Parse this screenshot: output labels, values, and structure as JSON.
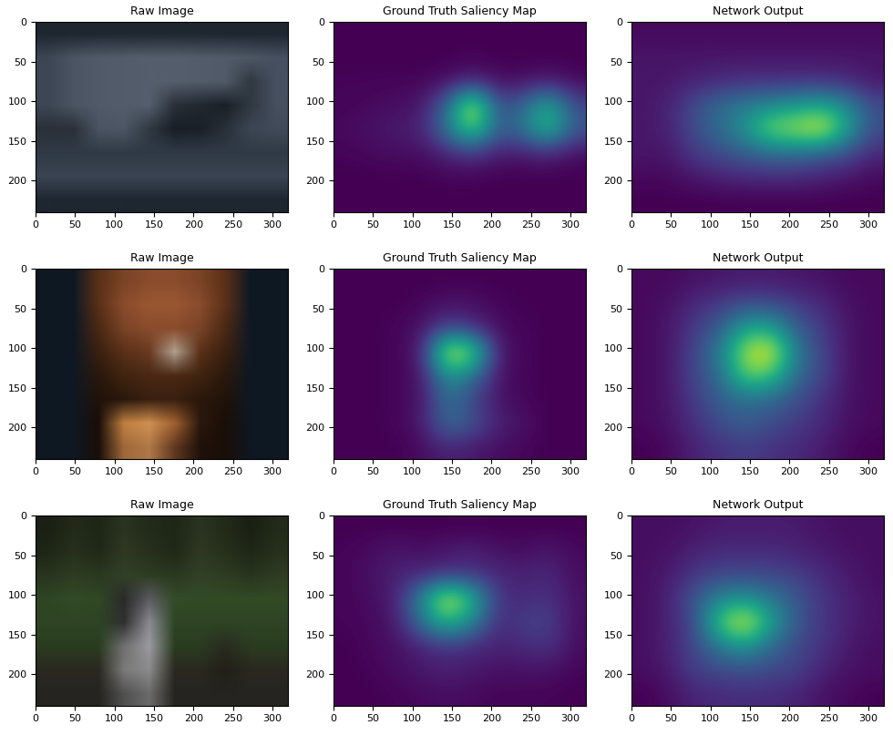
{
  "chart_data": [
    {
      "type": "image",
      "title": "Raw Image",
      "xlim": [
        0,
        320
      ],
      "ylim": [
        240,
        0
      ],
      "xticks": [
        0,
        50,
        100,
        150,
        200,
        250,
        300
      ],
      "yticks": [
        0,
        50,
        100,
        150,
        200
      ],
      "pixels": [
        [
          "#1e2630",
          "#1e2630",
          "#1e2630",
          "#1e2630",
          "#1e2630",
          "#1e2630",
          "#1e2630",
          "#1e2630",
          "#1e2630",
          "#1e2630"
        ],
        [
          "#3c4654",
          "#4a5462",
          "#505a68",
          "#525c6a",
          "#545e6c",
          "#545e6c",
          "#525c6a",
          "#505a68",
          "#4c5664",
          "#465060"
        ],
        [
          "#3c4654",
          "#4a5462",
          "#505a68",
          "#525c6a",
          "#545e6c",
          "#545e6c",
          "#525c6a",
          "#505a68",
          "#303840",
          "#465060"
        ],
        [
          "#3c4654",
          "#4a5462",
          "#505a68",
          "#525c6a",
          "#545e6c",
          "#2a3038",
          "#202830",
          "#1a2028",
          "#303840",
          "#465060"
        ],
        [
          "#2a3038",
          "#2a3038",
          "#4a5462",
          "#4c5664",
          "#303840",
          "#181e26",
          "#1a2028",
          "#283038",
          "#3c4654",
          "#404a58"
        ],
        [
          "#303a46",
          "#303a46",
          "#303a46",
          "#303a46",
          "#303a46",
          "#303a46",
          "#303a46",
          "#303a46",
          "#303a46",
          "#303a46"
        ],
        [
          "#3a4452",
          "#3a4452",
          "#3a4452",
          "#3a4452",
          "#3a4452",
          "#3a4452",
          "#3a4452",
          "#3a4452",
          "#3a4452",
          "#3a4452"
        ],
        [
          "#1e2630",
          "#1e2630",
          "#1e2630",
          "#1e2630",
          "#1e2630",
          "#1e2630",
          "#1e2630",
          "#1e2630",
          "#1e2630",
          "#1e2630"
        ]
      ]
    },
    {
      "type": "heatmap",
      "title": "Ground Truth Saliency Map",
      "xlim": [
        0,
        320
      ],
      "ylim": [
        240,
        0
      ],
      "xticks": [
        0,
        50,
        100,
        150,
        200,
        250,
        300
      ],
      "yticks": [
        0,
        50,
        100,
        150,
        200
      ],
      "cells": [
        [
          0.02,
          0.02,
          0.02,
          0.02,
          0.02,
          0.02,
          0.02,
          0.02,
          0.02,
          0.02
        ],
        [
          0.02,
          0.02,
          0.02,
          0.02,
          0.02,
          0.03,
          0.02,
          0.02,
          0.02,
          0.02
        ],
        [
          0.03,
          0.03,
          0.03,
          0.03,
          0.05,
          0.1,
          0.05,
          0.05,
          0.08,
          0.04
        ],
        [
          0.03,
          0.04,
          0.05,
          0.07,
          0.3,
          0.85,
          0.2,
          0.3,
          0.55,
          0.2
        ],
        [
          0.04,
          0.06,
          0.08,
          0.1,
          0.35,
          0.7,
          0.25,
          0.35,
          0.6,
          0.25
        ],
        [
          0.03,
          0.04,
          0.05,
          0.05,
          0.1,
          0.15,
          0.08,
          0.08,
          0.1,
          0.05
        ],
        [
          0.02,
          0.02,
          0.02,
          0.02,
          0.03,
          0.03,
          0.02,
          0.02,
          0.02,
          0.02
        ],
        [
          0.02,
          0.02,
          0.02,
          0.02,
          0.02,
          0.02,
          0.02,
          0.02,
          0.02,
          0.02
        ]
      ]
    },
    {
      "type": "heatmap",
      "title": "Network Output",
      "xlim": [
        0,
        320
      ],
      "ylim": [
        240,
        0
      ],
      "xticks": [
        0,
        50,
        100,
        150,
        200,
        250,
        300
      ],
      "yticks": [
        0,
        50,
        100,
        150,
        200
      ],
      "cells": [
        [
          0.12,
          0.12,
          0.12,
          0.12,
          0.12,
          0.12,
          0.12,
          0.12,
          0.12,
          0.12
        ],
        [
          0.15,
          0.15,
          0.15,
          0.15,
          0.15,
          0.15,
          0.15,
          0.15,
          0.15,
          0.15
        ],
        [
          0.15,
          0.15,
          0.18,
          0.2,
          0.22,
          0.22,
          0.22,
          0.22,
          0.2,
          0.15
        ],
        [
          0.15,
          0.18,
          0.3,
          0.4,
          0.45,
          0.5,
          0.55,
          0.6,
          0.5,
          0.3
        ],
        [
          0.15,
          0.18,
          0.3,
          0.4,
          0.55,
          0.8,
          0.85,
          0.95,
          0.6,
          0.3
        ],
        [
          0.15,
          0.15,
          0.25,
          0.3,
          0.35,
          0.4,
          0.4,
          0.35,
          0.3,
          0.2
        ],
        [
          0.12,
          0.12,
          0.15,
          0.18,
          0.2,
          0.2,
          0.2,
          0.18,
          0.15,
          0.12
        ],
        [
          0.1,
          0.1,
          0.1,
          0.1,
          0.1,
          0.1,
          0.1,
          0.1,
          0.1,
          0.1
        ]
      ]
    },
    {
      "type": "image",
      "title": "Raw Image",
      "xlim": [
        0,
        320
      ],
      "ylim": [
        240,
        0
      ],
      "xticks": [
        0,
        50,
        100,
        150,
        200,
        250,
        300
      ],
      "yticks": [
        0,
        50,
        100,
        150,
        200
      ],
      "pixels": [
        [
          "#0e1822",
          "#0e1822",
          "#5a3018",
          "#7a4426",
          "#8a4c2c",
          "#8a4c2c",
          "#7a4426",
          "#5a3018",
          "#0e1822",
          "#0e1822"
        ],
        [
          "#0e1822",
          "#0e1822",
          "#5a3018",
          "#8a4c2c",
          "#9a5632",
          "#9a5632",
          "#8a4c2c",
          "#5a3018",
          "#0e1822",
          "#0e1822"
        ],
        [
          "#0e1822",
          "#0e1822",
          "#4a2814",
          "#7a4426",
          "#8a4c2c",
          "#8a4c2c",
          "#7a4426",
          "#4a2814",
          "#0e1822",
          "#0e1822"
        ],
        [
          "#0e1822",
          "#0e1822",
          "#3a2010",
          "#5a3018",
          "#6a3a20",
          "#b0a090",
          "#5a3018",
          "#3a2010",
          "#0e1822",
          "#0e1822"
        ],
        [
          "#0e1822",
          "#0e1822",
          "#2a180c",
          "#40240f",
          "#4a2814",
          "#4a2814",
          "#40240f",
          "#2a180c",
          "#0e1822",
          "#0e1822"
        ],
        [
          "#0e1822",
          "#0e1822",
          "#20120a",
          "#2a180c",
          "#3a2010",
          "#3a2010",
          "#2a180c",
          "#20120a",
          "#0e1822",
          "#0e1822"
        ],
        [
          "#0e1822",
          "#0e1822",
          "#1a0e08",
          "#c08040",
          "#d09050",
          "#a06030",
          "#2a180c",
          "#1a0e08",
          "#0e1822",
          "#0e1822"
        ],
        [
          "#0e1822",
          "#0e1822",
          "#1a0e08",
          "#a06838",
          "#b07848",
          "#603820",
          "#20120a",
          "#1a0e08",
          "#0e1822",
          "#0e1822"
        ]
      ]
    },
    {
      "type": "heatmap",
      "title": "Ground Truth Saliency Map",
      "xlim": [
        0,
        320
      ],
      "ylim": [
        240,
        0
      ],
      "xticks": [
        0,
        50,
        100,
        150,
        200,
        250,
        300
      ],
      "yticks": [
        0,
        50,
        100,
        150,
        200
      ],
      "cells": [
        [
          0.02,
          0.02,
          0.02,
          0.02,
          0.02,
          0.02,
          0.02,
          0.02,
          0.02,
          0.02
        ],
        [
          0.02,
          0.02,
          0.02,
          0.03,
          0.05,
          0.05,
          0.03,
          0.02,
          0.02,
          0.02
        ],
        [
          0.02,
          0.02,
          0.03,
          0.05,
          0.15,
          0.1,
          0.04,
          0.03,
          0.02,
          0.02
        ],
        [
          0.02,
          0.02,
          0.03,
          0.06,
          0.65,
          0.55,
          0.06,
          0.03,
          0.02,
          0.02
        ],
        [
          0.02,
          0.02,
          0.03,
          0.05,
          0.35,
          0.25,
          0.05,
          0.03,
          0.02,
          0.02
        ],
        [
          0.02,
          0.02,
          0.03,
          0.05,
          0.25,
          0.15,
          0.05,
          0.03,
          0.02,
          0.02
        ],
        [
          0.02,
          0.02,
          0.03,
          0.06,
          0.25,
          0.18,
          0.08,
          0.05,
          0.02,
          0.02
        ],
        [
          0.02,
          0.02,
          0.02,
          0.04,
          0.08,
          0.06,
          0.04,
          0.03,
          0.02,
          0.02
        ]
      ]
    },
    {
      "type": "heatmap",
      "title": "Network Output",
      "xlim": [
        0,
        320
      ],
      "ylim": [
        240,
        0
      ],
      "xticks": [
        0,
        50,
        100,
        150,
        200,
        250,
        300
      ],
      "yticks": [
        0,
        50,
        100,
        150,
        200
      ],
      "cells": [
        [
          0.12,
          0.12,
          0.14,
          0.15,
          0.16,
          0.16,
          0.15,
          0.14,
          0.12,
          0.12
        ],
        [
          0.12,
          0.14,
          0.2,
          0.25,
          0.3,
          0.3,
          0.25,
          0.2,
          0.14,
          0.12
        ],
        [
          0.12,
          0.15,
          0.25,
          0.35,
          0.6,
          0.6,
          0.35,
          0.25,
          0.15,
          0.12
        ],
        [
          0.12,
          0.15,
          0.28,
          0.45,
          0.85,
          0.95,
          0.45,
          0.28,
          0.15,
          0.12
        ],
        [
          0.12,
          0.15,
          0.28,
          0.4,
          0.75,
          0.7,
          0.4,
          0.28,
          0.15,
          0.12
        ],
        [
          0.12,
          0.15,
          0.25,
          0.35,
          0.4,
          0.38,
          0.3,
          0.22,
          0.14,
          0.12
        ],
        [
          0.12,
          0.14,
          0.22,
          0.3,
          0.35,
          0.3,
          0.25,
          0.2,
          0.14,
          0.12
        ],
        [
          0.1,
          0.12,
          0.18,
          0.22,
          0.25,
          0.22,
          0.2,
          0.16,
          0.12,
          0.1
        ]
      ]
    },
    {
      "type": "image",
      "title": "Raw Image",
      "xlim": [
        0,
        320
      ],
      "ylim": [
        240,
        0
      ],
      "xticks": [
        0,
        50,
        100,
        150,
        200,
        250,
        300
      ],
      "yticks": [
        0,
        50,
        100,
        150,
        200
      ],
      "pixels": [
        [
          "#1a2014",
          "#222a18",
          "#1e2616",
          "#2a3420",
          "#222a18",
          "#1e2616",
          "#2a3420",
          "#222a18",
          "#1a2014",
          "#222a18"
        ],
        [
          "#1e2616",
          "#26301c",
          "#202818",
          "#2e3822",
          "#26301c",
          "#202818",
          "#2e3822",
          "#26301c",
          "#1e2616",
          "#26301c"
        ],
        [
          "#28341e",
          "#2e3c22",
          "#2a3820",
          "#324028",
          "#2e3c22",
          "#2a3820",
          "#324028",
          "#2e3c22",
          "#28341e",
          "#2e3c22"
        ],
        [
          "#2e4624",
          "#324a26",
          "#304824",
          "#2a2a2a",
          "#5a5a60",
          "#344c28",
          "#324a26",
          "#324a26",
          "#324a26",
          "#324a26"
        ],
        [
          "#2e4424",
          "#2e4424",
          "#2e4424",
          "#303030",
          "#8a8a90",
          "#2e4424",
          "#2e4424",
          "#2e4424",
          "#2e4424",
          "#2e4424"
        ],
        [
          "#2a3c20",
          "#2a3c20",
          "#2a3c20",
          "#707070",
          "#9a9aa0",
          "#2a3c20",
          "#2a3c20",
          "#2a2a20",
          "#2a3c20",
          "#2a3c20"
        ],
        [
          "#2a2820",
          "#2a2820",
          "#2a2820",
          "#7a7a7a",
          "#8a8a8a",
          "#2a2820",
          "#2a2820",
          "#202018",
          "#2a2820",
          "#2a2820"
        ],
        [
          "#262420",
          "#262420",
          "#262420",
          "#505050",
          "#6a6a6a",
          "#262420",
          "#262420",
          "#262420",
          "#262420",
          "#262420"
        ]
      ]
    },
    {
      "type": "heatmap",
      "title": "Ground Truth Saliency Map",
      "xlim": [
        0,
        320
      ],
      "ylim": [
        240,
        0
      ],
      "xticks": [
        0,
        50,
        100,
        150,
        200,
        250,
        300
      ],
      "yticks": [
        0,
        50,
        100,
        150,
        200
      ],
      "cells": [
        [
          0.02,
          0.02,
          0.02,
          0.02,
          0.02,
          0.02,
          0.02,
          0.02,
          0.02,
          0.02
        ],
        [
          0.03,
          0.05,
          0.08,
          0.05,
          0.08,
          0.1,
          0.06,
          0.05,
          0.08,
          0.04
        ],
        [
          0.03,
          0.06,
          0.1,
          0.12,
          0.15,
          0.15,
          0.12,
          0.1,
          0.12,
          0.05
        ],
        [
          0.03,
          0.05,
          0.1,
          0.45,
          0.9,
          0.6,
          0.15,
          0.12,
          0.15,
          0.06
        ],
        [
          0.03,
          0.04,
          0.08,
          0.35,
          0.6,
          0.4,
          0.12,
          0.18,
          0.2,
          0.05
        ],
        [
          0.02,
          0.04,
          0.06,
          0.1,
          0.15,
          0.12,
          0.1,
          0.12,
          0.15,
          0.05
        ],
        [
          0.02,
          0.03,
          0.05,
          0.08,
          0.1,
          0.08,
          0.06,
          0.06,
          0.06,
          0.03
        ],
        [
          0.02,
          0.02,
          0.03,
          0.04,
          0.05,
          0.04,
          0.03,
          0.03,
          0.03,
          0.02
        ]
      ]
    },
    {
      "type": "heatmap",
      "title": "Network Output",
      "xlim": [
        0,
        320
      ],
      "ylim": [
        240,
        0
      ],
      "xticks": [
        0,
        50,
        100,
        150,
        200,
        250,
        300
      ],
      "yticks": [
        0,
        50,
        100,
        150,
        200
      ],
      "cells": [
        [
          0.15,
          0.15,
          0.16,
          0.18,
          0.18,
          0.18,
          0.18,
          0.16,
          0.15,
          0.15
        ],
        [
          0.15,
          0.16,
          0.2,
          0.22,
          0.22,
          0.22,
          0.2,
          0.18,
          0.16,
          0.15
        ],
        [
          0.15,
          0.18,
          0.25,
          0.3,
          0.3,
          0.3,
          0.28,
          0.22,
          0.18,
          0.15
        ],
        [
          0.15,
          0.2,
          0.35,
          0.5,
          0.55,
          0.45,
          0.35,
          0.25,
          0.2,
          0.16
        ],
        [
          0.15,
          0.2,
          0.3,
          0.75,
          0.95,
          0.6,
          0.35,
          0.25,
          0.2,
          0.16
        ],
        [
          0.15,
          0.2,
          0.3,
          0.45,
          0.55,
          0.4,
          0.3,
          0.25,
          0.18,
          0.15
        ],
        [
          0.15,
          0.18,
          0.28,
          0.3,
          0.32,
          0.3,
          0.28,
          0.2,
          0.16,
          0.15
        ],
        [
          0.12,
          0.15,
          0.2,
          0.22,
          0.22,
          0.22,
          0.2,
          0.16,
          0.14,
          0.12
        ]
      ]
    }
  ]
}
